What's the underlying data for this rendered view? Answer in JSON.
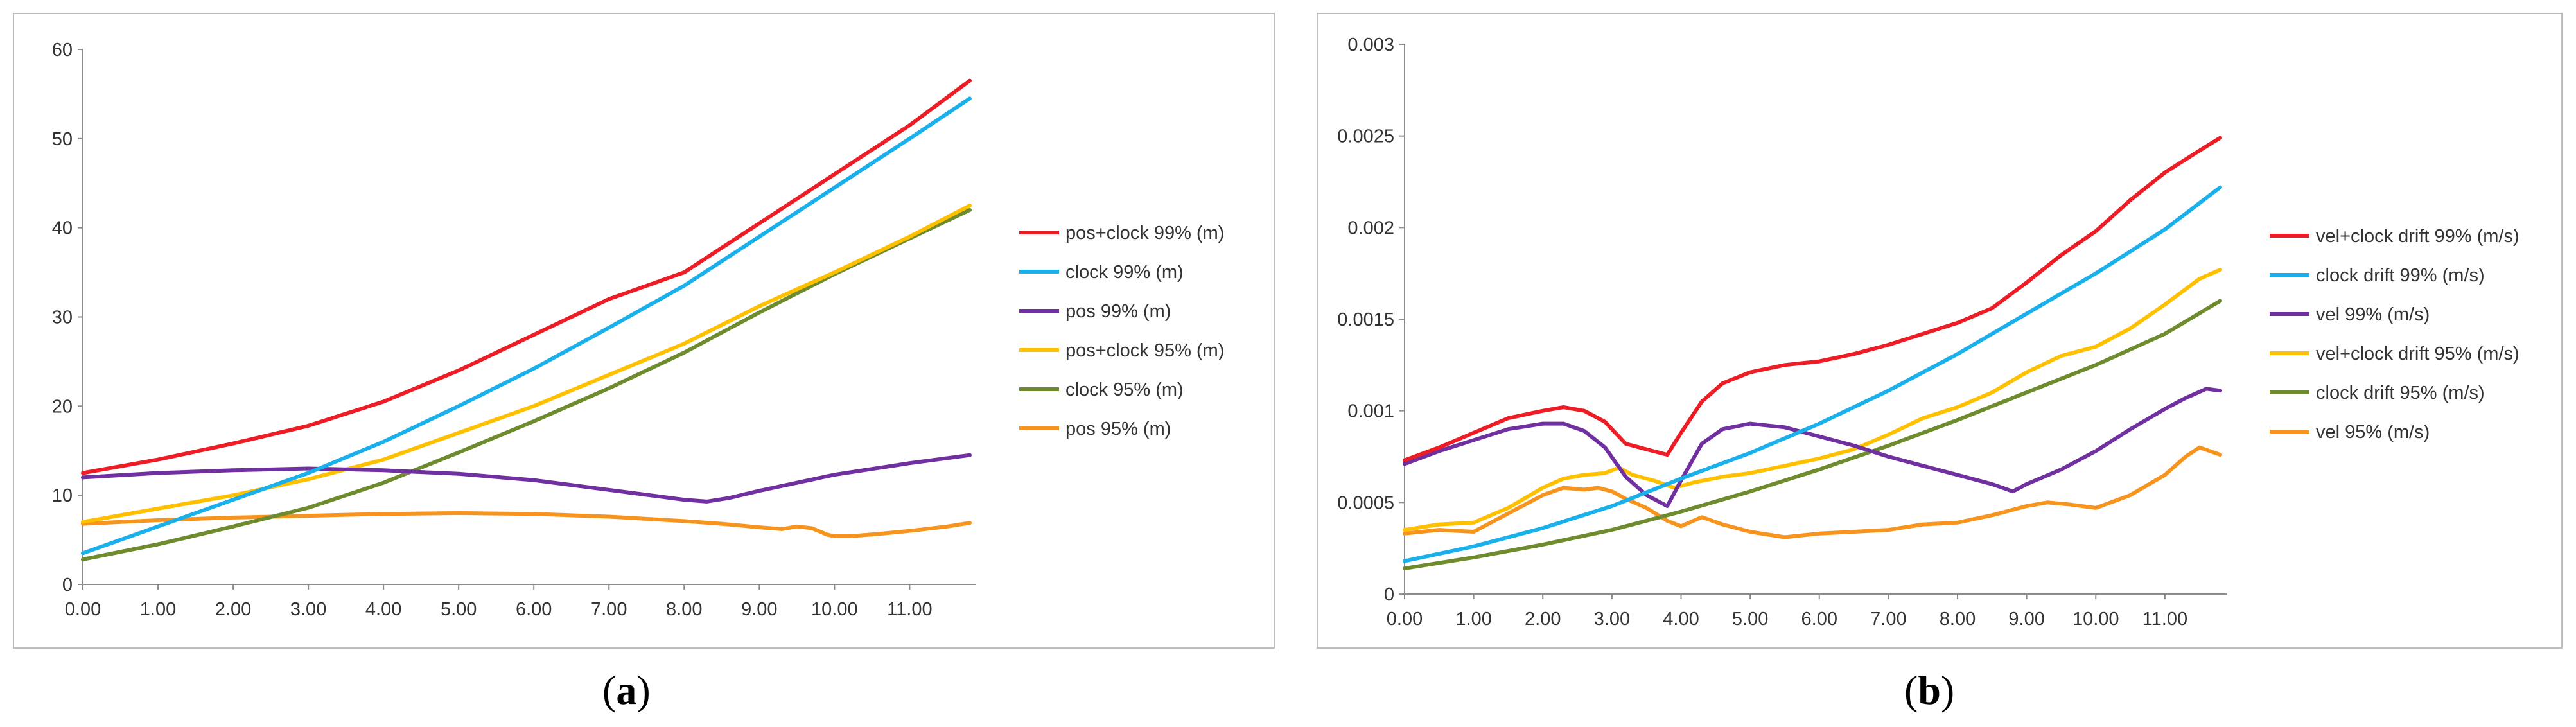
{
  "captions": {
    "a": {
      "open": "(",
      "letter": "a",
      "close": ")"
    },
    "b": {
      "open": "(",
      "letter": "b",
      "close": ")"
    }
  },
  "chart_data": [
    {
      "id": "a",
      "type": "line",
      "title": "",
      "xlabel": "",
      "ylabel": "",
      "x_ticks": [
        "0.00",
        "1.00",
        "2.00",
        "3.00",
        "4.00",
        "5.00",
        "6.00",
        "7.00",
        "8.00",
        "9.00",
        "10.00",
        "11.00"
      ],
      "xlim": [
        0,
        11.8
      ],
      "ylim": [
        0,
        60
      ],
      "y_ticks": [
        "0",
        "10",
        "20",
        "30",
        "40",
        "50",
        "60"
      ],
      "y_tick_values": [
        0,
        10,
        20,
        30,
        40,
        50,
        60
      ],
      "grid": false,
      "legend": "right",
      "series": [
        {
          "name": "pos+clock 99% (m)",
          "color": "#ee1c25",
          "points": [
            [
              0,
              12.5
            ],
            [
              1,
              14
            ],
            [
              2,
              15.8
            ],
            [
              3,
              17.8
            ],
            [
              4,
              20.5
            ],
            [
              5,
              24
            ],
            [
              6,
              28
            ],
            [
              7,
              32
            ],
            [
              8,
              35
            ],
            [
              9,
              40.5
            ],
            [
              10,
              46
            ],
            [
              11,
              51.5
            ],
            [
              11.8,
              56.5
            ]
          ]
        },
        {
          "name": "clock 99% (m)",
          "color": "#1ab0ec",
          "points": [
            [
              0,
              3.5
            ],
            [
              1,
              6.5
            ],
            [
              2,
              9.5
            ],
            [
              3,
              12.5
            ],
            [
              4,
              16
            ],
            [
              5,
              20
            ],
            [
              6,
              24.2
            ],
            [
              7,
              28.8
            ],
            [
              8,
              33.5
            ],
            [
              9,
              39
            ],
            [
              10,
              44.5
            ],
            [
              11,
              50
            ],
            [
              11.8,
              54.5
            ]
          ]
        },
        {
          "name": "pos 99% (m)",
          "color": "#7030a0",
          "points": [
            [
              0,
              12
            ],
            [
              1,
              12.5
            ],
            [
              2,
              12.8
            ],
            [
              3,
              13
            ],
            [
              4,
              12.8
            ],
            [
              5,
              12.4
            ],
            [
              6,
              11.7
            ],
            [
              7,
              10.6
            ],
            [
              8,
              9.5
            ],
            [
              8.3,
              9.3
            ],
            [
              8.6,
              9.7
            ],
            [
              9,
              10.5
            ],
            [
              10,
              12.3
            ],
            [
              11,
              13.6
            ],
            [
              11.8,
              14.5
            ]
          ]
        },
        {
          "name": "pos+clock 95% (m)",
          "color": "#ffc000",
          "points": [
            [
              0,
              7
            ],
            [
              1,
              8.5
            ],
            [
              2,
              10
            ],
            [
              3,
              11.8
            ],
            [
              4,
              14
            ],
            [
              5,
              17
            ],
            [
              6,
              20
            ],
            [
              7,
              23.5
            ],
            [
              8,
              27
            ],
            [
              9,
              31.2
            ],
            [
              10,
              35
            ],
            [
              11,
              39
            ],
            [
              11.8,
              42.5
            ]
          ]
        },
        {
          "name": "clock 95% (m)",
          "color": "#6e8b2e",
          "points": [
            [
              0,
              2.8
            ],
            [
              1,
              4.5
            ],
            [
              2,
              6.5
            ],
            [
              3,
              8.6
            ],
            [
              4,
              11.4
            ],
            [
              5,
              14.8
            ],
            [
              6,
              18.3
            ],
            [
              7,
              22
            ],
            [
              8,
              26
            ],
            [
              9,
              30.5
            ],
            [
              10,
              34.8
            ],
            [
              11,
              38.8
            ],
            [
              11.8,
              42
            ]
          ]
        },
        {
          "name": "pos 95% (m)",
          "color": "#f7941d",
          "points": [
            [
              0,
              6.8
            ],
            [
              1,
              7.2
            ],
            [
              2,
              7.5
            ],
            [
              3,
              7.7
            ],
            [
              4,
              7.9
            ],
            [
              5,
              8
            ],
            [
              6,
              7.9
            ],
            [
              7,
              7.6
            ],
            [
              8,
              7.1
            ],
            [
              8.5,
              6.8
            ],
            [
              9,
              6.4
            ],
            [
              9.3,
              6.2
            ],
            [
              9.5,
              6.5
            ],
            [
              9.7,
              6.3
            ],
            [
              9.9,
              5.6
            ],
            [
              10,
              5.4
            ],
            [
              10.2,
              5.4
            ],
            [
              10.5,
              5.6
            ],
            [
              11,
              6
            ],
            [
              11.5,
              6.5
            ],
            [
              11.8,
              6.9
            ]
          ]
        }
      ]
    },
    {
      "id": "b",
      "type": "line",
      "title": "",
      "xlabel": "",
      "ylabel": "",
      "x_ticks": [
        "0.00",
        "1.00",
        "2.00",
        "3.00",
        "4.00",
        "5.00",
        "6.00",
        "7.00",
        "8.00",
        "9.00",
        "10.00",
        "11.00"
      ],
      "xlim": [
        0,
        11.8
      ],
      "ylim": [
        0,
        0.003
      ],
      "y_ticks": [
        "0",
        "0.0005",
        "0.001",
        "0.0015",
        "0.002",
        "0.0025",
        "0.003"
      ],
      "y_tick_values": [
        0,
        0.0005,
        0.001,
        0.0015,
        0.002,
        0.0025,
        0.003
      ],
      "grid": false,
      "legend": "right",
      "series": [
        {
          "name": "vel+clock drift 99% (m/s)",
          "color": "#ee1c25",
          "points": [
            [
              0,
              0.00073
            ],
            [
              0.5,
              0.0008
            ],
            [
              1,
              0.00088
            ],
            [
              1.5,
              0.00096
            ],
            [
              2,
              0.001
            ],
            [
              2.3,
              0.00102
            ],
            [
              2.6,
              0.001
            ],
            [
              2.9,
              0.00094
            ],
            [
              3.2,
              0.00082
            ],
            [
              3.5,
              0.00079
            ],
            [
              3.8,
              0.00076
            ],
            [
              4,
              0.00088
            ],
            [
              4.3,
              0.00105
            ],
            [
              4.6,
              0.00115
            ],
            [
              5,
              0.00121
            ],
            [
              5.5,
              0.00125
            ],
            [
              6,
              0.00127
            ],
            [
              6.5,
              0.00131
            ],
            [
              7,
              0.00136
            ],
            [
              7.5,
              0.00142
            ],
            [
              8,
              0.00148
            ],
            [
              8.5,
              0.00156
            ],
            [
              9,
              0.0017
            ],
            [
              9.5,
              0.00185
            ],
            [
              10,
              0.00198
            ],
            [
              10.5,
              0.00215
            ],
            [
              11,
              0.0023
            ],
            [
              11.5,
              0.00242
            ],
            [
              11.8,
              0.00249
            ]
          ]
        },
        {
          "name": "clock drift 99% (m/s)",
          "color": "#1ab0ec",
          "points": [
            [
              0,
              0.00018
            ],
            [
              1,
              0.00026
            ],
            [
              2,
              0.00036
            ],
            [
              3,
              0.00048
            ],
            [
              4,
              0.00063
            ],
            [
              5,
              0.00077
            ],
            [
              6,
              0.00093
            ],
            [
              7,
              0.00111
            ],
            [
              8,
              0.00131
            ],
            [
              9,
              0.00153
            ],
            [
              10,
              0.00175
            ],
            [
              11,
              0.00199
            ],
            [
              11.8,
              0.00222
            ]
          ]
        },
        {
          "name": "vel 99% (m/s)",
          "color": "#7030a0",
          "points": [
            [
              0,
              0.00071
            ],
            [
              0.5,
              0.00078
            ],
            [
              1,
              0.00084
            ],
            [
              1.5,
              0.0009
            ],
            [
              2,
              0.00093
            ],
            [
              2.3,
              0.00093
            ],
            [
              2.6,
              0.00089
            ],
            [
              2.9,
              0.0008
            ],
            [
              3.2,
              0.00064
            ],
            [
              3.5,
              0.00054
            ],
            [
              3.8,
              0.00048
            ],
            [
              4,
              0.00062
            ],
            [
              4.3,
              0.00082
            ],
            [
              4.6,
              0.0009
            ],
            [
              5,
              0.00093
            ],
            [
              5.5,
              0.00091
            ],
            [
              6,
              0.00086
            ],
            [
              6.5,
              0.00081
            ],
            [
              7,
              0.00075
            ],
            [
              7.5,
              0.0007
            ],
            [
              8,
              0.00065
            ],
            [
              8.5,
              0.0006
            ],
            [
              8.8,
              0.00056
            ],
            [
              9,
              0.0006
            ],
            [
              9.5,
              0.00068
            ],
            [
              10,
              0.00078
            ],
            [
              10.5,
              0.0009
            ],
            [
              11,
              0.00101
            ],
            [
              11.3,
              0.00107
            ],
            [
              11.6,
              0.00112
            ],
            [
              11.8,
              0.00111
            ]
          ]
        },
        {
          "name": "vel+clock drift 95% (m/s)",
          "color": "#ffc000",
          "points": [
            [
              0,
              0.00035
            ],
            [
              0.5,
              0.00038
            ],
            [
              1,
              0.00039
            ],
            [
              1.5,
              0.00047
            ],
            [
              2,
              0.00058
            ],
            [
              2.3,
              0.00063
            ],
            [
              2.6,
              0.00065
            ],
            [
              2.9,
              0.00066
            ],
            [
              3.1,
              0.00069
            ],
            [
              3.3,
              0.00065
            ],
            [
              3.6,
              0.00062
            ],
            [
              3.9,
              0.00058
            ],
            [
              4.2,
              0.00061
            ],
            [
              4.6,
              0.00064
            ],
            [
              5,
              0.00066
            ],
            [
              5.5,
              0.0007
            ],
            [
              6,
              0.00074
            ],
            [
              6.5,
              0.00079
            ],
            [
              7,
              0.00087
            ],
            [
              7.5,
              0.00096
            ],
            [
              8,
              0.00102
            ],
            [
              8.5,
              0.0011
            ],
            [
              9,
              0.00121
            ],
            [
              9.5,
              0.0013
            ],
            [
              10,
              0.00135
            ],
            [
              10.5,
              0.00145
            ],
            [
              11,
              0.00158
            ],
            [
              11.5,
              0.00172
            ],
            [
              11.8,
              0.00177
            ]
          ]
        },
        {
          "name": "clock drift 95% (m/s)",
          "color": "#6e8b2e",
          "points": [
            [
              0,
              0.00014
            ],
            [
              1,
              0.0002
            ],
            [
              2,
              0.00027
            ],
            [
              3,
              0.00035
            ],
            [
              4,
              0.00045
            ],
            [
              5,
              0.00056
            ],
            [
              6,
              0.00068
            ],
            [
              7,
              0.00081
            ],
            [
              8,
              0.00095
            ],
            [
              9,
              0.0011
            ],
            [
              10,
              0.00125
            ],
            [
              11,
              0.00142
            ],
            [
              11.8,
              0.0016
            ]
          ]
        },
        {
          "name": "vel 95% (m/s)",
          "color": "#f7941d",
          "points": [
            [
              0,
              0.00033
            ],
            [
              0.5,
              0.00035
            ],
            [
              1,
              0.00034
            ],
            [
              1.5,
              0.00044
            ],
            [
              2,
              0.00054
            ],
            [
              2.3,
              0.00058
            ],
            [
              2.6,
              0.00057
            ],
            [
              2.8,
              0.00058
            ],
            [
              3,
              0.00056
            ],
            [
              3.2,
              0.00052
            ],
            [
              3.5,
              0.00047
            ],
            [
              3.8,
              0.0004
            ],
            [
              4,
              0.00037
            ],
            [
              4.3,
              0.00042
            ],
            [
              4.6,
              0.00038
            ],
            [
              5,
              0.00034
            ],
            [
              5.5,
              0.00031
            ],
            [
              6,
              0.00033
            ],
            [
              6.5,
              0.00034
            ],
            [
              7,
              0.00035
            ],
            [
              7.5,
              0.00038
            ],
            [
              8,
              0.00039
            ],
            [
              8.5,
              0.00043
            ],
            [
              9,
              0.00048
            ],
            [
              9.3,
              0.0005
            ],
            [
              9.6,
              0.00049
            ],
            [
              10,
              0.00047
            ],
            [
              10.5,
              0.00054
            ],
            [
              11,
              0.00065
            ],
            [
              11.3,
              0.00075
            ],
            [
              11.5,
              0.0008
            ],
            [
              11.8,
              0.00076
            ]
          ]
        }
      ]
    }
  ]
}
